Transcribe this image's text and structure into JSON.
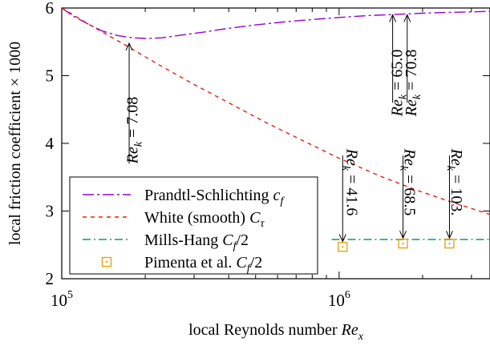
{
  "chart_data": {
    "type": "line",
    "title": "",
    "xlabel": {
      "text": "local Reynolds number ",
      "math": "Re",
      "sub": "x"
    },
    "ylabel": "local friction coefficient × 1000",
    "xscale": "log",
    "xlim": [
      100000,
      3500000
    ],
    "ylim": [
      2,
      6
    ],
    "x_ticks": [
      {
        "value": 100000,
        "base": "10",
        "exp": "5"
      },
      {
        "value": 1000000,
        "base": "10",
        "exp": "6"
      }
    ],
    "y_ticks": [
      2,
      3,
      4,
      5,
      6
    ],
    "grid": false,
    "legend_position": "bottom-left",
    "series": [
      {
        "name": "Prandtl-Schlichting c_f",
        "label_text": "Prandtl-Schlichting ",
        "label_math": "c",
        "label_sub": "f",
        "label_tail": "",
        "color": "#9400d3",
        "dash": "14 4 3 4",
        "x": [
          100000,
          110000,
          125000,
          140000,
          160000,
          180000,
          200000,
          230000,
          270000,
          320000,
          400000,
          500000,
          650000,
          800000,
          1000000,
          1300000,
          1700000,
          2200000,
          2800000,
          3500000
        ],
        "y": [
          6.0,
          5.88,
          5.76,
          5.66,
          5.59,
          5.56,
          5.55,
          5.56,
          5.6,
          5.64,
          5.7,
          5.75,
          5.8,
          5.83,
          5.86,
          5.89,
          5.91,
          5.93,
          5.94,
          5.95
        ]
      },
      {
        "name": "White (smooth) C_τ",
        "label_text": "White (smooth) ",
        "label_math": "C",
        "label_sub": "τ",
        "label_tail": "",
        "color": "#e51e10",
        "dash": "5 5",
        "x": [
          100000,
          130000,
          170000,
          220000,
          300000,
          400000,
          550000,
          750000,
          1000000,
          1400000,
          1900000,
          2600000,
          3500000
        ],
        "y": [
          6.0,
          5.72,
          5.45,
          5.18,
          4.87,
          4.6,
          4.3,
          4.03,
          3.78,
          3.52,
          3.31,
          3.12,
          2.95
        ]
      },
      {
        "name": "Mills-Hang C_f/2",
        "label_text": "Mills-Hang ",
        "label_math": "C",
        "label_sub": "f",
        "label_tail": "/2",
        "color": "#009e73",
        "dash": "10 4 2 4",
        "x": [
          940000,
          3500000
        ],
        "y": [
          2.58,
          2.58
        ]
      }
    ],
    "points": {
      "name": "Pimenta et al. C_f/2",
      "label_text": "Pimenta et al. ",
      "label_math": "C",
      "label_sub": "f",
      "label_tail": "/2",
      "color": "#e69f00",
      "x": [
        1030000,
        1700000,
        2500000
      ],
      "y": [
        2.47,
        2.52,
        2.52
      ]
    },
    "annotations": [
      {
        "math": "Re",
        "sub": "k",
        "text": " = 7.08",
        "x_text": 180000,
        "y_text_bottom": 3.7,
        "x_arrow": 175000,
        "y_arrow_top": 3.7,
        "y_arrow_tip": 5.48
      },
      {
        "math": "Re",
        "sub": "k",
        "text": " = 65.0",
        "x_text": 1620000,
        "y_text_bottom": 4.4,
        "x_arrow": 1560000,
        "y_arrow_top": 4.6,
        "y_arrow_tip": 5.9
      },
      {
        "math": "Re",
        "sub": "k",
        "text": " = 70.8",
        "x_text": 1820000,
        "y_text_bottom": 4.4,
        "x_arrow": 1760000,
        "y_arrow_top": 4.6,
        "y_arrow_tip": 5.9
      },
      {
        "math": "Re",
        "sub": "k",
        "text": " = 41.6",
        "x_text": 1110000,
        "y_text_top": 3.92,
        "x_arrow": 1030000,
        "y_arrow_top": 3.82,
        "y_arrow_tip": 2.55
      },
      {
        "math": "Re",
        "sub": "k",
        "text": " = 68.5",
        "x_text": 1790000,
        "y_text_top": 3.92,
        "x_arrow": 1700000,
        "y_arrow_top": 3.82,
        "y_arrow_tip": 2.6
      },
      {
        "math": "Re",
        "sub": "k",
        "text": " = 103.",
        "x_text": 2650000,
        "y_text_top": 3.92,
        "x_arrow": 2500000,
        "y_arrow_top": 3.82,
        "y_arrow_tip": 2.6
      }
    ]
  }
}
